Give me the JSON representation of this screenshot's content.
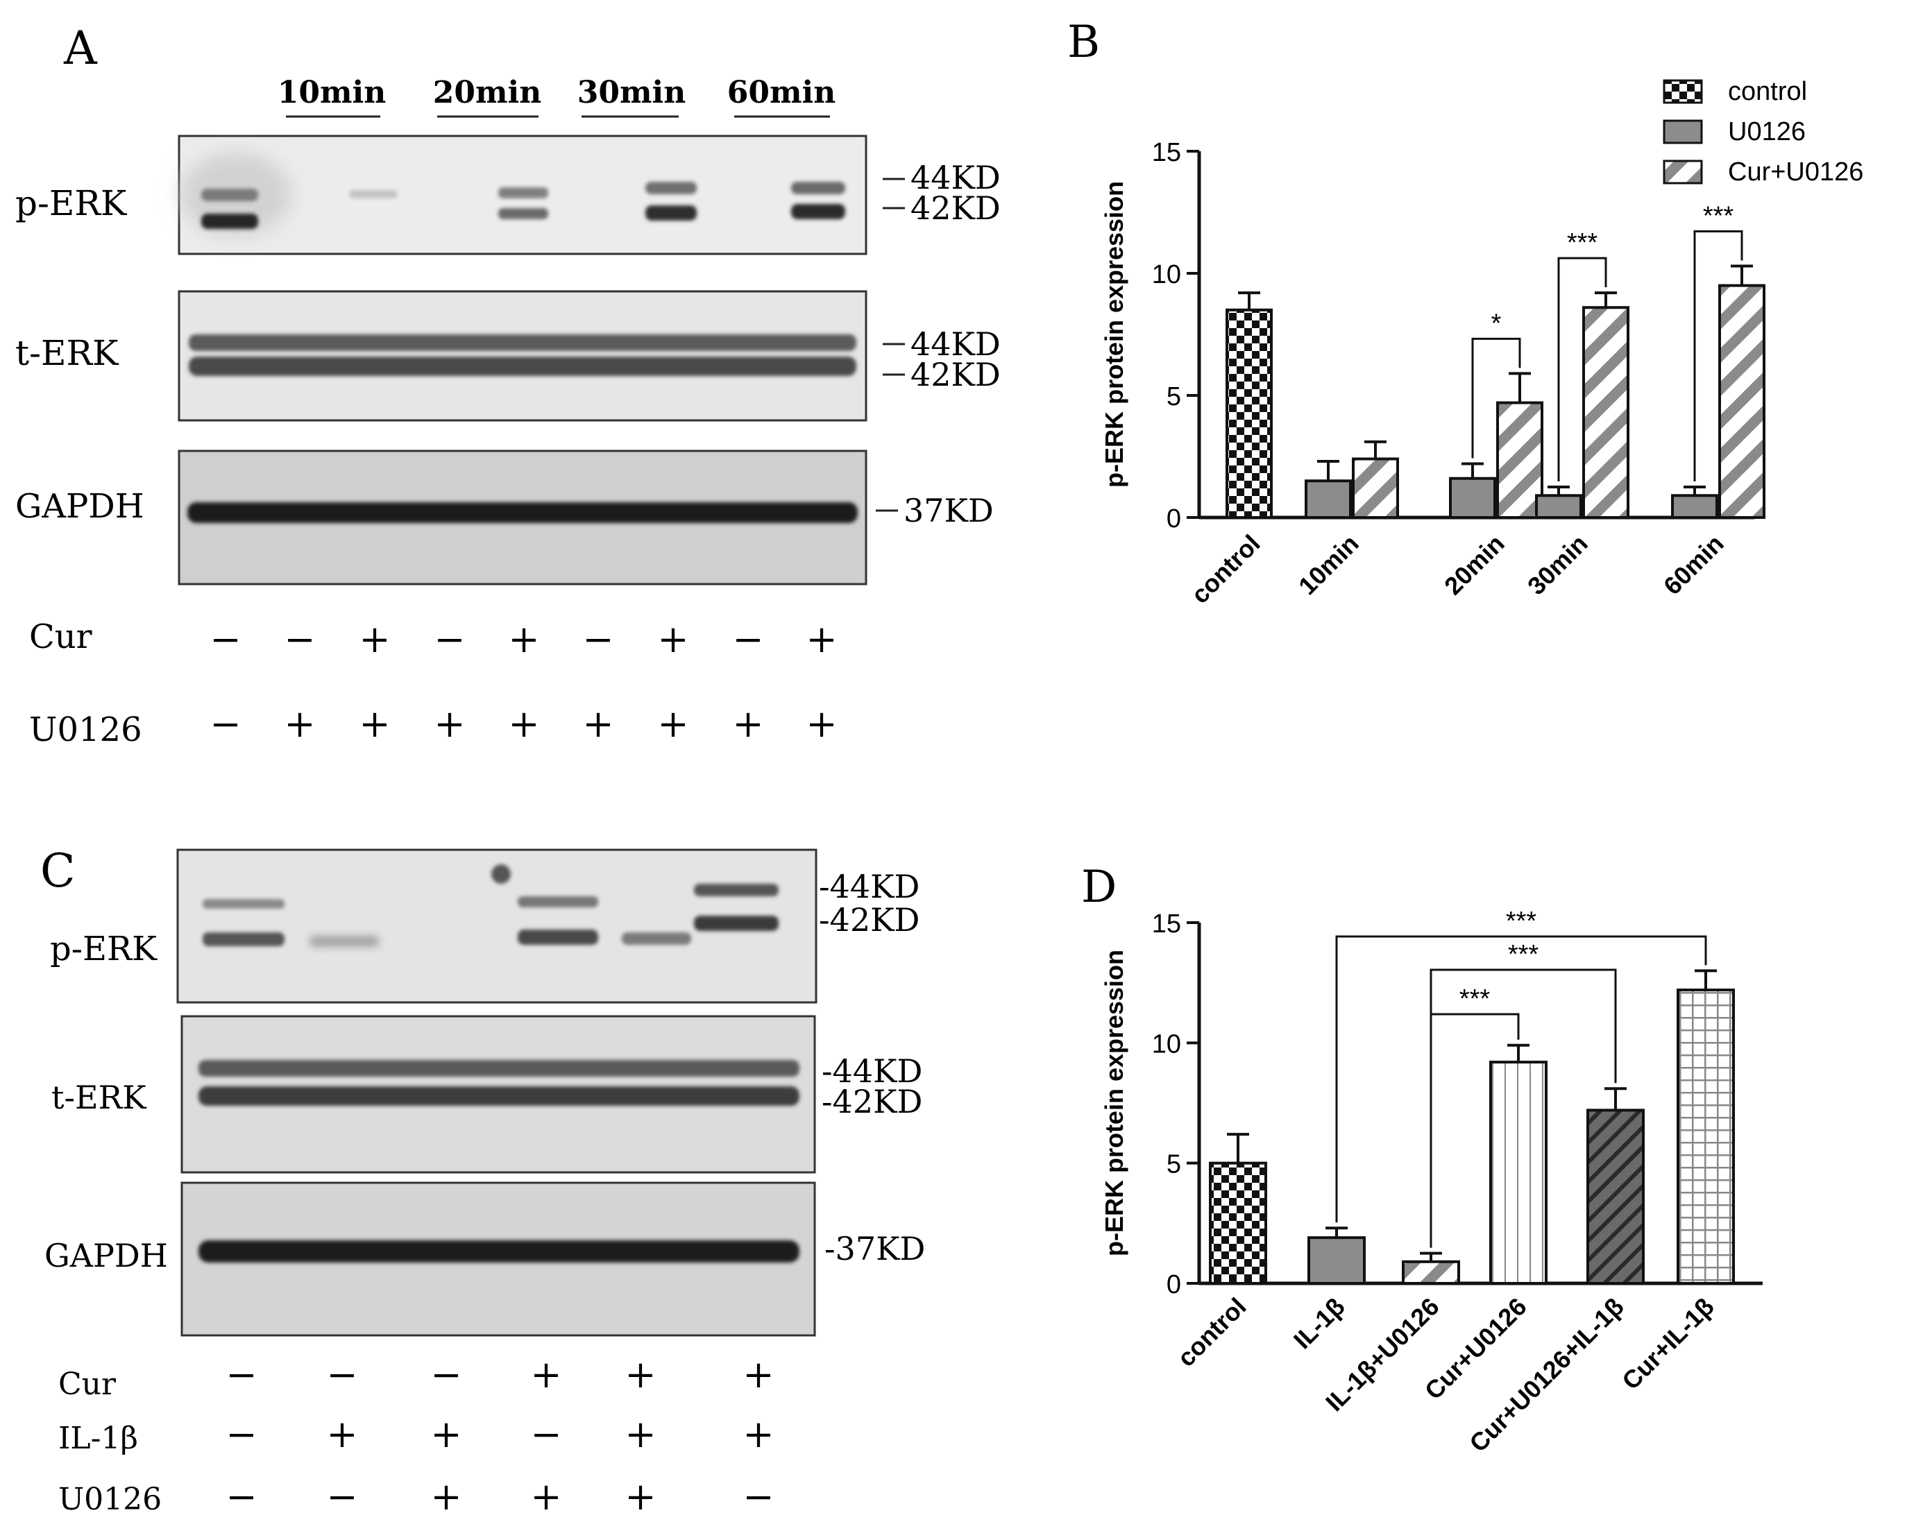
{
  "panels": {
    "A": {
      "letter": "A",
      "timepoints": [
        "10min",
        "20min",
        "30min",
        "60min"
      ],
      "blots": [
        {
          "label": "p-ERK",
          "markers": [
            "44KD",
            "42KD"
          ]
        },
        {
          "label": "t-ERK",
          "markers": [
            "44KD",
            "42KD"
          ]
        },
        {
          "label": "GAPDH",
          "markers": [
            "37KD"
          ]
        }
      ],
      "treatments": [
        {
          "name": "Cur",
          "signs": [
            "−",
            "−",
            "+",
            "−",
            "+",
            "−",
            "+",
            "−",
            "+"
          ]
        },
        {
          "name": "U0126",
          "signs": [
            "−",
            "+",
            "+",
            "+",
            "+",
            "+",
            "+",
            "+",
            "+"
          ]
        }
      ]
    },
    "C": {
      "letter": "C",
      "blots": [
        {
          "label": "p-ERK",
          "markers": [
            "44KD",
            "42KD"
          ]
        },
        {
          "label": "t-ERK",
          "markers": [
            "44KD",
            "42KD"
          ]
        },
        {
          "label": "GAPDH",
          "markers": [
            "37KD"
          ]
        }
      ],
      "treatments": [
        {
          "name": "Cur",
          "signs": [
            "−",
            "−",
            "−",
            "+",
            "+",
            "+"
          ]
        },
        {
          "name": "IL-1β",
          "signs": [
            "−",
            "+",
            "+",
            "−",
            "+",
            "+"
          ]
        },
        {
          "name": "U0126",
          "signs": [
            "−",
            "−",
            "+",
            "+",
            "+",
            "−"
          ]
        }
      ]
    }
  },
  "chart_data": [
    {
      "panel": "B",
      "type": "bar",
      "ylabel": "p-ERK protein expression",
      "ylim": [
        0,
        15
      ],
      "yticks": [
        "0",
        "5",
        "10",
        "15"
      ],
      "categories": [
        "control",
        "10min",
        "20min",
        "30min",
        "60min"
      ],
      "legend": {
        "placement": "top-right",
        "entries": [
          {
            "name": "control",
            "pattern": "checker"
          },
          {
            "name": "U0126",
            "pattern": "gray"
          },
          {
            "name": "Cur+U0126",
            "pattern": "diagonal"
          }
        ]
      },
      "series": [
        {
          "name": "control",
          "pattern": "checker",
          "values": [
            8.5,
            null,
            null,
            null,
            null
          ],
          "errors": [
            0.7,
            null,
            null,
            null,
            null
          ]
        },
        {
          "name": "U0126",
          "pattern": "gray",
          "values": [
            null,
            1.5,
            1.6,
            0.9,
            0.9
          ],
          "errors": [
            null,
            0.8,
            0.6,
            0.35,
            0.35
          ]
        },
        {
          "name": "Cur+U0126",
          "pattern": "diagonal",
          "values": [
            null,
            2.4,
            4.7,
            8.6,
            9.5
          ],
          "errors": [
            null,
            0.7,
            1.2,
            0.6,
            0.8
          ]
        }
      ],
      "significance": [
        {
          "category": "20min",
          "label": "*"
        },
        {
          "category": "30min",
          "label": "***"
        },
        {
          "category": "60min",
          "label": "***"
        }
      ]
    },
    {
      "panel": "D",
      "type": "bar",
      "ylabel": "p-ERK protein expression",
      "ylim": [
        0,
        15
      ],
      "yticks": [
        "0",
        "5",
        "10",
        "15"
      ],
      "categories": [
        "control",
        "IL-1β",
        "IL-1β+U0126",
        "Cur+U0126",
        "Cur+U0126+IL-1β",
        "Cur+IL-1β"
      ],
      "values": [
        5.0,
        1.9,
        0.9,
        9.2,
        7.2,
        12.2
      ],
      "errors": [
        1.2,
        0.4,
        0.35,
        0.7,
        0.9,
        0.8
      ],
      "patterns": [
        "checker",
        "gray",
        "diagonal",
        "vlines",
        "darkdiag",
        "grid"
      ],
      "significance": [
        {
          "from": "IL-1β",
          "to": "Cur+IL-1β",
          "label": "***"
        },
        {
          "from": "IL-1β+U0126",
          "to": "Cur+U0126+IL-1β",
          "label": "***"
        },
        {
          "from": "IL-1β+U0126",
          "to": "Cur+U0126",
          "label": "***"
        }
      ]
    }
  ]
}
